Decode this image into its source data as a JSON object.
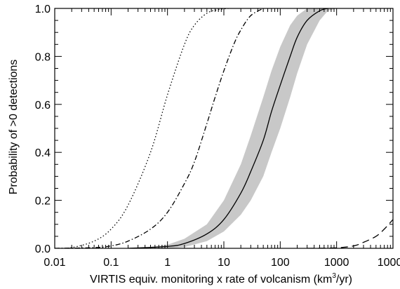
{
  "chart_data": {
    "type": "line",
    "title": "",
    "xlabel": "VIRTIS equiv. monitoring x rate of volcanism (km",
    "xlabel_sup": "3",
    "xlabel_end": "/yr)",
    "ylabel": "Probability of >0 detections",
    "xscale": "log",
    "xlim": [
      0.01,
      10000
    ],
    "ylim": [
      0.0,
      1.0
    ],
    "xticks": [
      0.01,
      0.1,
      1,
      10,
      100,
      1000,
      10000
    ],
    "xtick_labels": [
      "0.01",
      "0.1",
      "1",
      "10",
      "100",
      "1000",
      "10000"
    ],
    "yticks": [
      0.0,
      0.2,
      0.4,
      0.6,
      0.8,
      1.0
    ],
    "ytick_labels": [
      "0.0",
      "0.2",
      "0.4",
      "0.6",
      "0.8",
      "1.0"
    ],
    "grid": false,
    "legend": "none",
    "series": [
      {
        "style": "dotted",
        "x": [
          0.01,
          0.02,
          0.05,
          0.1,
          0.2,
          0.5,
          1,
          2,
          3,
          5,
          8,
          12
        ],
        "y": [
          0.0,
          0.003,
          0.03,
          0.08,
          0.18,
          0.4,
          0.64,
          0.85,
          0.93,
          0.98,
          0.995,
          1.0
        ]
      },
      {
        "style": "dash-dot",
        "x": [
          0.01,
          0.05,
          0.1,
          0.2,
          0.5,
          1,
          2,
          3,
          5,
          7,
          10,
          15,
          20,
          30,
          50
        ],
        "y": [
          0.0,
          0.003,
          0.01,
          0.03,
          0.08,
          0.15,
          0.27,
          0.36,
          0.52,
          0.63,
          0.74,
          0.85,
          0.91,
          0.97,
          1.0
        ]
      },
      {
        "style": "solid",
        "x": [
          0.2,
          1,
          2,
          5,
          10,
          20,
          30,
          50,
          70,
          100,
          150,
          200,
          300,
          500,
          700
        ],
        "y": [
          0.0,
          0.008,
          0.02,
          0.06,
          0.12,
          0.23,
          0.32,
          0.45,
          0.57,
          0.68,
          0.8,
          0.88,
          0.95,
          0.99,
          1.0
        ]
      },
      {
        "style": "dashed",
        "x": [
          300,
          1000,
          2000,
          3000,
          5000,
          7000,
          10000
        ],
        "y": [
          0.0,
          0.002,
          0.01,
          0.025,
          0.05,
          0.08,
          0.12
        ]
      }
    ],
    "band": {
      "color": "#c8c8c8",
      "x": [
        0.5,
        1,
        2,
        5,
        10,
        20,
        30,
        50,
        70,
        100,
        150,
        200,
        300,
        500,
        700,
        1000
      ],
      "lower": [
        0.0,
        0.0,
        0.005,
        0.03,
        0.07,
        0.14,
        0.2,
        0.3,
        0.4,
        0.5,
        0.63,
        0.73,
        0.85,
        0.95,
        0.99,
        1.0
      ],
      "upper": [
        0.005,
        0.015,
        0.04,
        0.1,
        0.2,
        0.35,
        0.47,
        0.63,
        0.74,
        0.84,
        0.93,
        0.97,
        1.0,
        1.0,
        1.0,
        1.0
      ]
    }
  }
}
